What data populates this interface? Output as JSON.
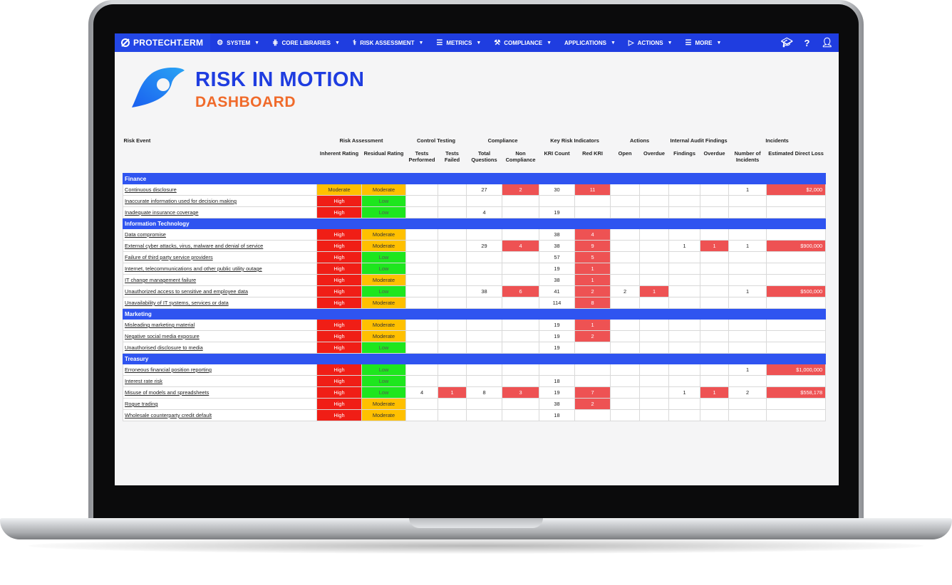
{
  "nav": {
    "brand": "PROTECHT.ERM",
    "items": [
      {
        "label": "SYSTEM",
        "icon": "gear-icon"
      },
      {
        "label": "CORE LIBRARIES",
        "icon": "library-icon"
      },
      {
        "label": "RISK ASSESSMENT",
        "icon": "stethoscope-icon"
      },
      {
        "label": "METRICS",
        "icon": "database-icon"
      },
      {
        "label": "COMPLIANCE",
        "icon": "gavel-icon"
      },
      {
        "label": "APPLICATIONS",
        "icon": ""
      },
      {
        "label": "ACTIONS",
        "icon": "flag-icon"
      },
      {
        "label": "MORE",
        "icon": "menu-icon"
      }
    ],
    "right_icons": [
      "graduation-cap-icon",
      "help-icon",
      "user-icon"
    ]
  },
  "header": {
    "title": "RISK IN MOTION",
    "subtitle": "DASHBOARD"
  },
  "table": {
    "group_headers": {
      "risk_event": "Risk Event",
      "risk_assessment": "Risk Assessment",
      "control_testing": "Control Testing",
      "compliance": "Compliance",
      "kri": "Key Risk Indicators",
      "actions": "Actions",
      "audit": "Internal Audit Findings",
      "incidents": "Incidents"
    },
    "sub_headers": {
      "inherent": "Inherent Rating",
      "residual": "Residual Rating",
      "tests_performed": "Tests Performed",
      "tests_failed": "Tests Failed",
      "total_questions": "Total Questions",
      "non_compliance": "Non Compliance",
      "kri_count": "KRI Count",
      "red_kri": "Red KRI",
      "open": "Open",
      "overdue": "Overdue",
      "findings": "Findings",
      "audit_overdue": "Overdue",
      "num_incidents": "Number of Incidents",
      "loss": "Estimated Direct Loss"
    },
    "categories": [
      {
        "name": "Finance",
        "rows": [
          {
            "event": "Continuous disclosure",
            "inherent": "Moderate",
            "residual": "Moderate",
            "tp": "",
            "tf": "",
            "tq": "27",
            "nc": "2",
            "kc": "30",
            "rk": "11",
            "op": "",
            "od": "",
            "fi": "",
            "ao": "",
            "ni": "1",
            "loss": "$2,000"
          },
          {
            "event": "Inaccurate information used for decision making",
            "inherent": "High",
            "residual": "Low",
            "tp": "",
            "tf": "",
            "tq": "",
            "nc": "",
            "kc": "",
            "rk": "",
            "op": "",
            "od": "",
            "fi": "",
            "ao": "",
            "ni": "",
            "loss": ""
          },
          {
            "event": "Inadequate insurance coverage",
            "inherent": "High",
            "residual": "Low",
            "tp": "",
            "tf": "",
            "tq": "4",
            "nc": "",
            "kc": "19",
            "rk": "",
            "op": "",
            "od": "",
            "fi": "",
            "ao": "",
            "ni": "",
            "loss": ""
          }
        ]
      },
      {
        "name": "Information Technology",
        "rows": [
          {
            "event": "Data compromise",
            "inherent": "High",
            "residual": "Moderate",
            "tp": "",
            "tf": "",
            "tq": "",
            "nc": "",
            "kc": "38",
            "rk": "4",
            "op": "",
            "od": "",
            "fi": "",
            "ao": "",
            "ni": "",
            "loss": ""
          },
          {
            "event": "External cyber attacks, virus, malware and denial of service",
            "inherent": "High",
            "residual": "Moderate",
            "tp": "",
            "tf": "",
            "tq": "29",
            "nc": "4",
            "kc": "38",
            "rk": "9",
            "op": "",
            "od": "",
            "fi": "1",
            "ao": "1",
            "ni": "1",
            "loss": "$900,000"
          },
          {
            "event": "Failure of third party service providers",
            "inherent": "High",
            "residual": "Low",
            "tp": "",
            "tf": "",
            "tq": "",
            "nc": "",
            "kc": "57",
            "rk": "5",
            "op": "",
            "od": "",
            "fi": "",
            "ao": "",
            "ni": "",
            "loss": ""
          },
          {
            "event": "Internet, telecommunications and other public utility outage",
            "inherent": "High",
            "residual": "Low",
            "tp": "",
            "tf": "",
            "tq": "",
            "nc": "",
            "kc": "19",
            "rk": "1",
            "op": "",
            "od": "",
            "fi": "",
            "ao": "",
            "ni": "",
            "loss": ""
          },
          {
            "event": "IT change management failure",
            "inherent": "High",
            "residual": "Moderate",
            "tp": "",
            "tf": "",
            "tq": "",
            "nc": "",
            "kc": "38",
            "rk": "1",
            "op": "",
            "od": "",
            "fi": "",
            "ao": "",
            "ni": "",
            "loss": ""
          },
          {
            "event": "Unauthorized access to sensitive and employee data",
            "inherent": "High",
            "residual": "Low",
            "tp": "",
            "tf": "",
            "tq": "38",
            "nc": "6",
            "kc": "41",
            "rk": "2",
            "op": "2",
            "od": "1",
            "fi": "",
            "ao": "",
            "ni": "1",
            "loss": "$500,000"
          },
          {
            "event": "Unavailability of IT systems, services or data",
            "inherent": "High",
            "residual": "Moderate",
            "tp": "",
            "tf": "",
            "tq": "",
            "nc": "",
            "kc": "114",
            "rk": "8",
            "op": "",
            "od": "",
            "fi": "",
            "ao": "",
            "ni": "",
            "loss": ""
          }
        ]
      },
      {
        "name": "Marketing",
        "rows": [
          {
            "event": "Misleading marketing material",
            "inherent": "High",
            "residual": "Moderate",
            "tp": "",
            "tf": "",
            "tq": "",
            "nc": "",
            "kc": "19",
            "rk": "1",
            "op": "",
            "od": "",
            "fi": "",
            "ao": "",
            "ni": "",
            "loss": ""
          },
          {
            "event": "Negative social media exposure",
            "inherent": "High",
            "residual": "Moderate",
            "tp": "",
            "tf": "",
            "tq": "",
            "nc": "",
            "kc": "19",
            "rk": "2",
            "op": "",
            "od": "",
            "fi": "",
            "ao": "",
            "ni": "",
            "loss": ""
          },
          {
            "event": "Unauthorised disclosure to media",
            "inherent": "High",
            "residual": "Low",
            "tp": "",
            "tf": "",
            "tq": "",
            "nc": "",
            "kc": "19",
            "rk": "",
            "op": "",
            "od": "",
            "fi": "",
            "ao": "",
            "ni": "",
            "loss": ""
          }
        ]
      },
      {
        "name": "Treasury",
        "rows": [
          {
            "event": "Erroneous financial position reporting",
            "inherent": "High",
            "residual": "Low",
            "tp": "",
            "tf": "",
            "tq": "",
            "nc": "",
            "kc": "",
            "rk": "",
            "op": "",
            "od": "",
            "fi": "",
            "ao": "",
            "ni": "1",
            "loss": "$1,000,000"
          },
          {
            "event": "Interest rate risk",
            "inherent": "High",
            "residual": "Low",
            "tp": "",
            "tf": "",
            "tq": "",
            "nc": "",
            "kc": "18",
            "rk": "",
            "op": "",
            "od": "",
            "fi": "",
            "ao": "",
            "ni": "",
            "loss": ""
          },
          {
            "event": "Misuse of models and spreadsheets",
            "inherent": "High",
            "residual": "Low",
            "tp": "4",
            "tf": "1",
            "tq": "8",
            "nc": "3",
            "kc": "19",
            "rk": "7",
            "op": "",
            "od": "",
            "fi": "1",
            "ao": "1",
            "ni": "2",
            "loss": "$558,178"
          },
          {
            "event": "Rogue trading",
            "inherent": "High",
            "residual": "Moderate",
            "tp": "",
            "tf": "",
            "tq": "",
            "nc": "",
            "kc": "38",
            "rk": "2",
            "op": "",
            "od": "",
            "fi": "",
            "ao": "",
            "ni": "",
            "loss": ""
          },
          {
            "event": "Wholesale counterparty credit default",
            "inherent": "High",
            "residual": "Moderate",
            "tp": "",
            "tf": "",
            "tq": "",
            "nc": "",
            "kc": "18",
            "rk": "",
            "op": "",
            "od": "",
            "fi": "",
            "ao": "",
            "ni": "",
            "loss": ""
          }
        ]
      }
    ]
  },
  "colors": {
    "nav_blue": "#1f3de0",
    "category_blue": "#2f54f0",
    "title_blue": "#1f3de0",
    "title_orange": "#f06a2a",
    "high": "#f01e16",
    "moderate": "#ffc000",
    "low": "#1ee61e",
    "alert_red": "#ee5253"
  }
}
